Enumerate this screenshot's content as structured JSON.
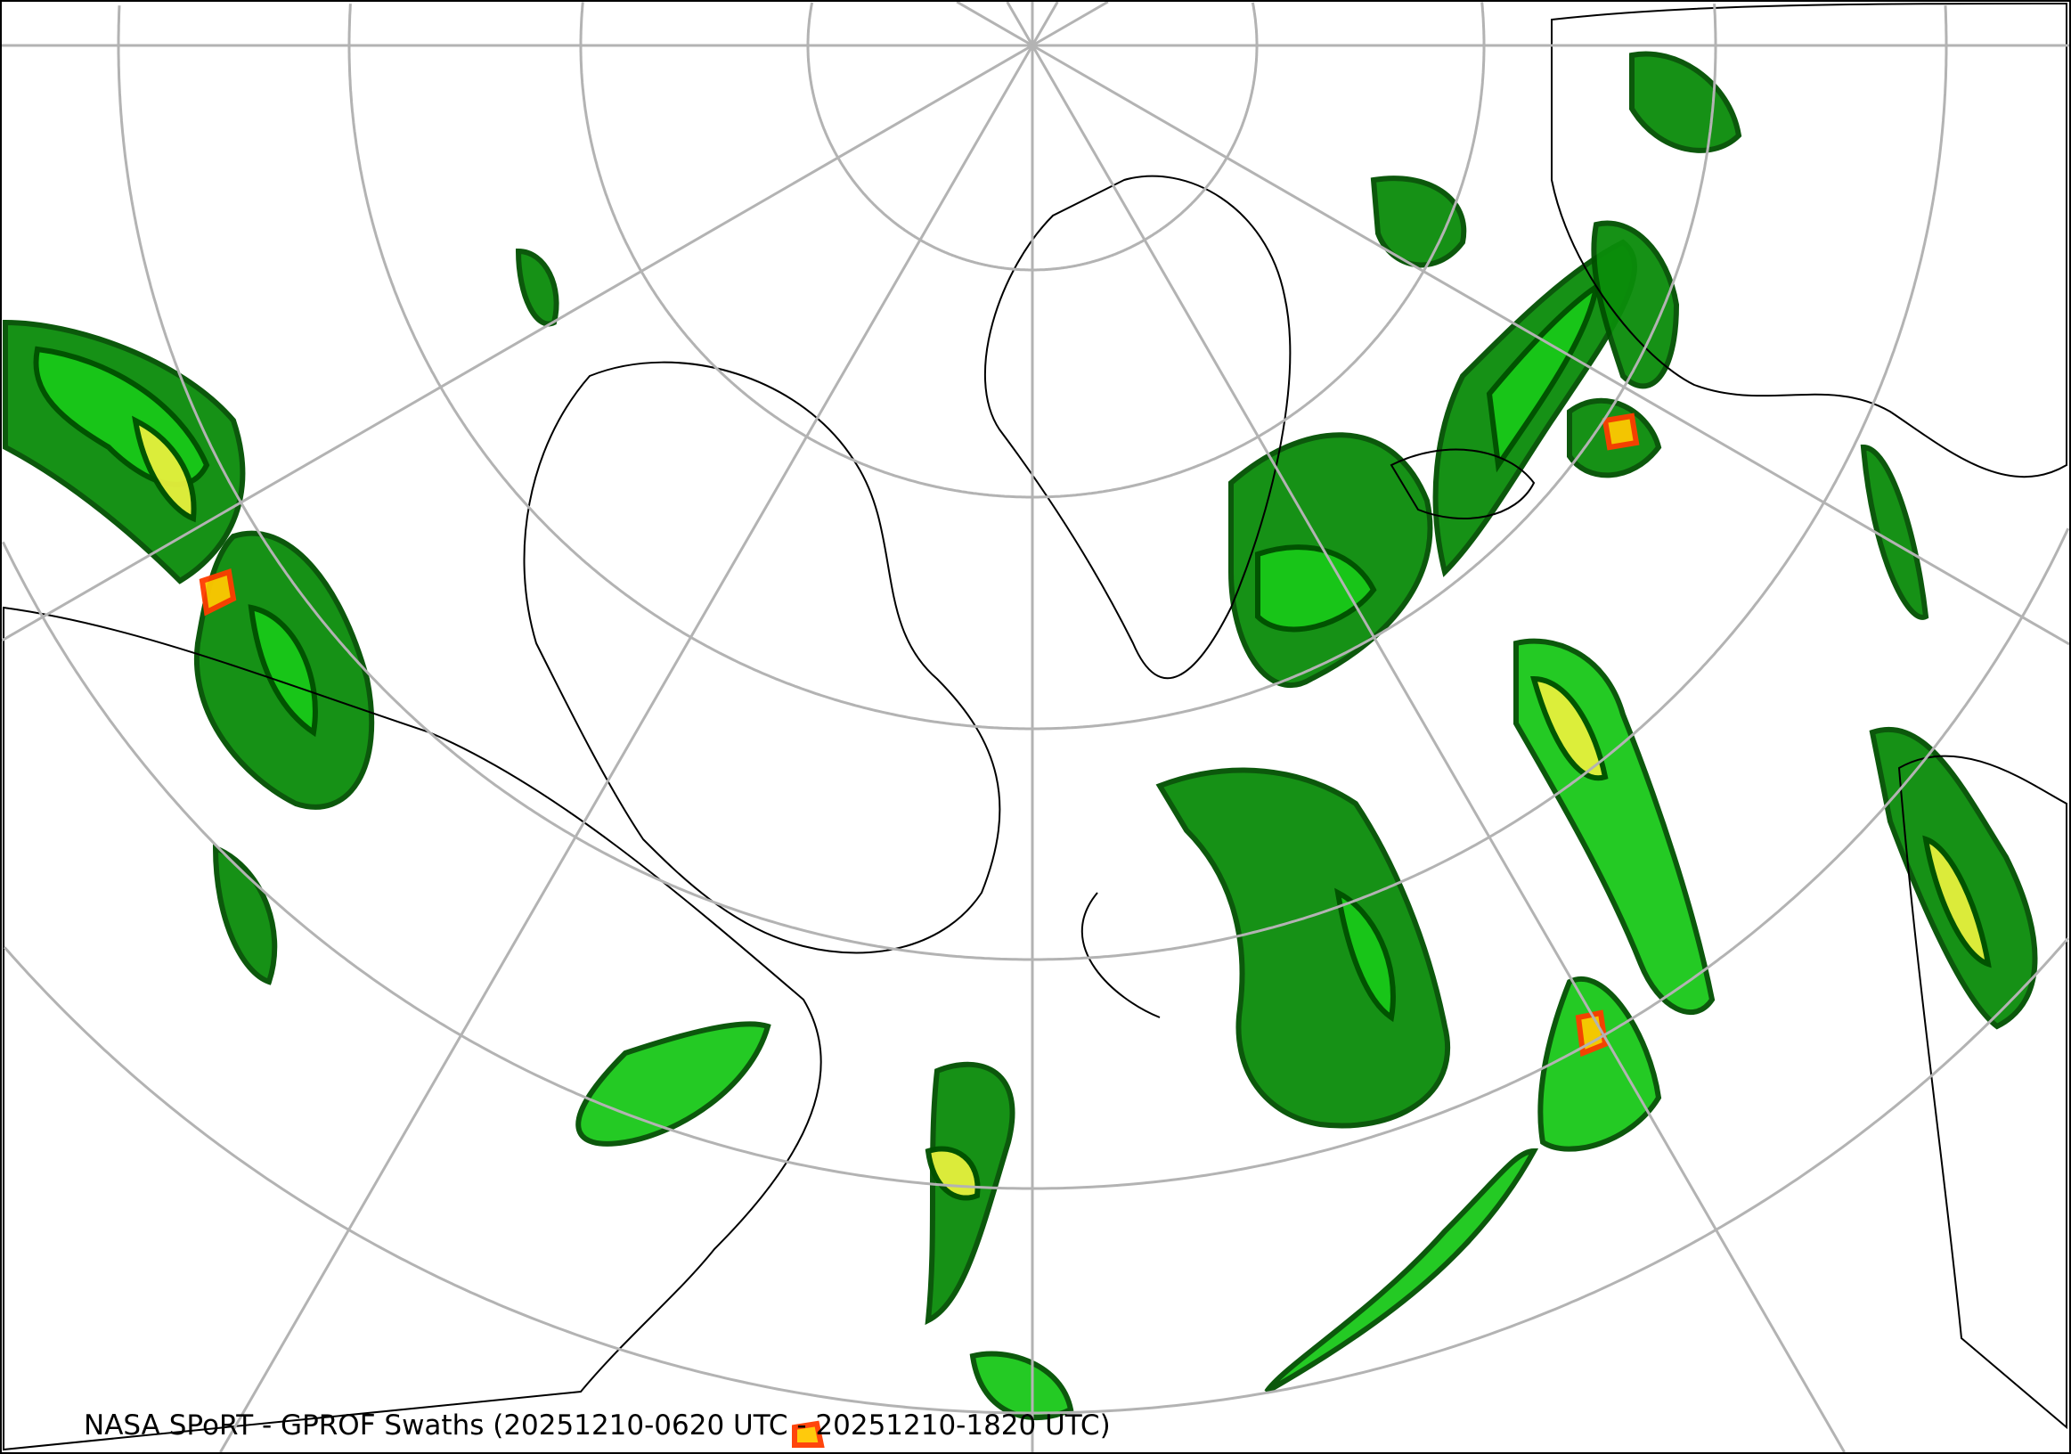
{
  "caption": "NASA SPoRT - GPROF Swaths (20251210-0620 UTC - 20251210-1820 UTC)",
  "map": {
    "projection": "polar-stereographic",
    "graticule_color": "#b3b3b3",
    "coastline_color": "#000000",
    "precip_colors": [
      "#005000",
      "#0a8c0a",
      "#19c819",
      "#7cfc00",
      "#e6f03c",
      "#ffc800",
      "#ff3c00"
    ]
  }
}
